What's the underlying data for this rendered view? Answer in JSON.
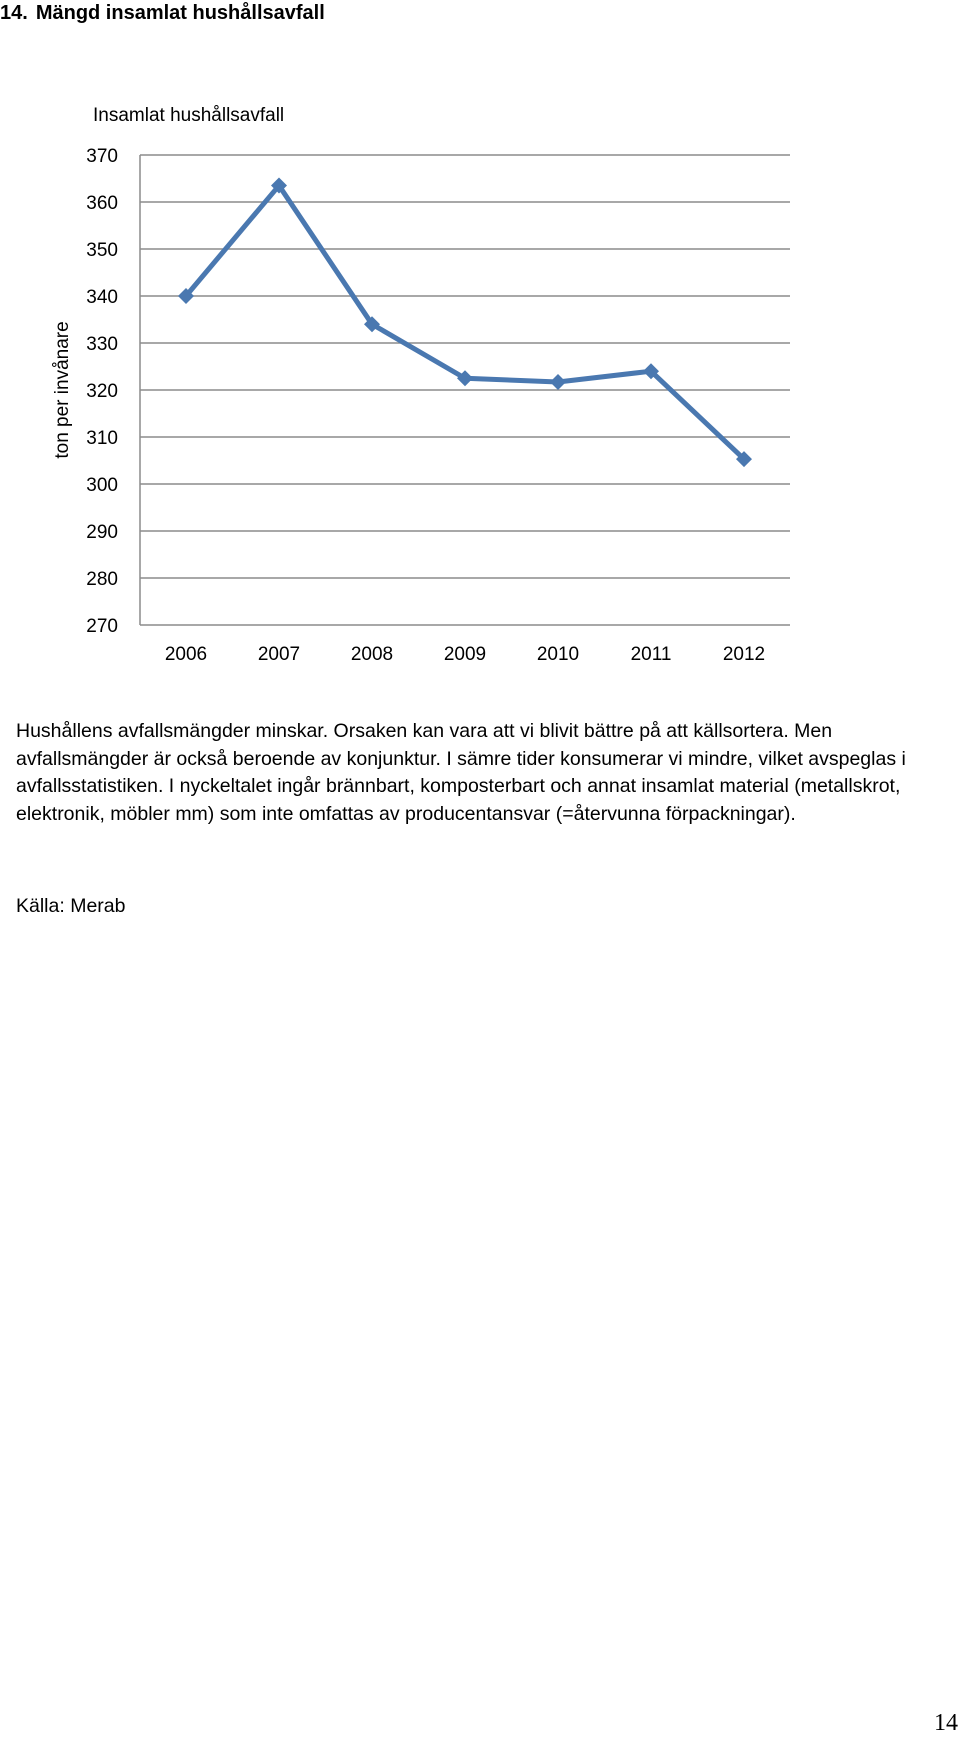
{
  "section": {
    "number": "14.",
    "title": "Mängd insamlat hushållsavfall"
  },
  "chart_data": {
    "type": "line",
    "title": "Insamlat hushållsavfall",
    "xlabel": "",
    "ylabel": "ton per invånare",
    "categories": [
      "2006",
      "2007",
      "2008",
      "2009",
      "2010",
      "2011",
      "2012"
    ],
    "series": [
      {
        "values": [
          340,
          363.5,
          334,
          322.5,
          321.7,
          324,
          305.3
        ]
      }
    ],
    "ylim": [
      270,
      370
    ],
    "yticks": [
      370,
      360,
      350,
      340,
      330,
      320,
      310,
      300,
      290,
      280,
      270
    ],
    "grid": true,
    "legend": "none",
    "line_color": "#4A78B0"
  },
  "description": "Hushållens avfallsmängder minskar. Orsaken kan vara att vi blivit bättre på att källsortera. Men avfallsmängder är också beroende av konjunktur. I sämre tider konsumerar vi mindre, vilket avspeglas i avfallsstatistiken. I nyckeltalet ingår brännbart, komposterbart och annat insamlat material (metallskrot, elektronik, möbler mm) som inte omfattas av producentansvar (=återvunna förpackningar).",
  "source": "Källa: Merab",
  "page_number": "14"
}
